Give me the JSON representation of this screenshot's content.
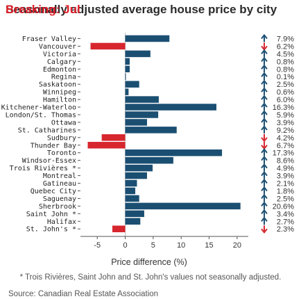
{
  "title": "Seasonally adjusted average house price by city",
  "title_overlay": "Breaking: Jul",
  "colors": {
    "positive": "#1b4f72",
    "negative": "#d7262e",
    "arrow_up": "#1b4f72",
    "arrow_down": "#d7262e"
  },
  "chart_data": {
    "type": "bar",
    "orientation": "horizontal",
    "categories": [
      "Fraser Valley",
      "Vancouver",
      "Victoria",
      "Calgary",
      "Edmonton",
      "Regina",
      "Saskatoon",
      "Winnipeg",
      "Hamilton",
      "Kitchener-Waterloo",
      "London/St. Thomas",
      "Ottawa",
      "St. Catharines",
      "Sudbury",
      "Thunder Bay",
      "Toronto",
      "Windsor-Essex",
      "Trois Rivières *",
      "Montreal",
      "Gatineau",
      "Quebec City",
      "Saguenay",
      "Sherbrook",
      "Saint John *",
      "Halifax",
      "St. John's *"
    ],
    "values": [
      7.9,
      -6.2,
      4.5,
      0.8,
      0.8,
      0.1,
      2.5,
      0.6,
      6.0,
      16.3,
      5.9,
      3.9,
      9.2,
      -4.2,
      -6.7,
      17.3,
      8.6,
      4.9,
      3.9,
      2.1,
      1.8,
      2.5,
      20.6,
      3.4,
      2.7,
      -2.3
    ],
    "value_labels": [
      "7.9%",
      "6.2%",
      "4.5%",
      "0.8%",
      "0.8%",
      "0.1%",
      "2.5%",
      "0.6%",
      "6.0%",
      "16.3%",
      "5.9%",
      "3.9%",
      "9.2%",
      "4.2%",
      "6.7%",
      "17.3%",
      "8.6%",
      "4.9%",
      "3.9%",
      "2.1%",
      "1.8%",
      "2.5%",
      "20.6%",
      "3.4%",
      "2.7%",
      "2.3%"
    ],
    "xlabel": "Price difference (%)",
    "xlim": [
      -8,
      22
    ],
    "xticks": [
      -5,
      0,
      5,
      10,
      15,
      20
    ],
    "grid": false
  },
  "footnote": "* Trois Rivières, Saint John and St. John's values not seasonally adjusted.",
  "source": "Source: Canadian Real Estate Association"
}
